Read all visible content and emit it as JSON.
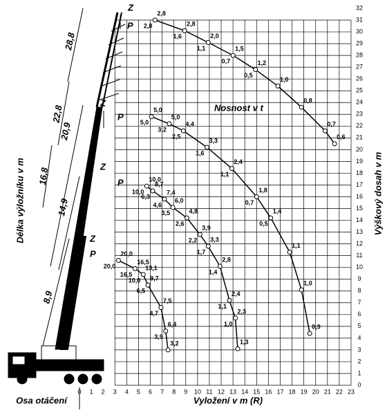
{
  "chart_data": {
    "type": "line",
    "title": "Nosnost  v  t",
    "x_label": "Vyložení  v m  (R)",
    "y_label": "Výškový  dosah  v m",
    "left_label": "Délka výložníku  v m",
    "origin_label": "Osa otáčení",
    "xlim": [
      0,
      23
    ],
    "ylim": [
      0,
      32
    ],
    "xticks": [
      0,
      1,
      2,
      3,
      4,
      5,
      6,
      7,
      8,
      9,
      10,
      11,
      12,
      13,
      14,
      15,
      16,
      17,
      18,
      19,
      20,
      21,
      22,
      23
    ],
    "yticks": [
      0,
      1,
      2,
      3,
      4,
      5,
      6,
      7,
      8,
      9,
      10,
      11,
      12,
      13,
      14,
      15,
      16,
      17,
      18,
      19,
      20,
      21,
      22,
      23,
      24,
      25,
      26,
      27,
      28,
      29,
      30,
      31,
      32
    ],
    "grid": true,
    "color": "#000000",
    "boom_lengths": [
      "28,8",
      "22,8",
      "20,9",
      "16,8",
      "14,9",
      "8,9"
    ],
    "series": [
      {
        "tags": [
          "Z",
          "P"
        ],
        "x": [
          6.4,
          8.9,
          10.9,
          13.0,
          14.9,
          16.8,
          18.8,
          20.8,
          21.6
        ],
        "values": [
          31.0,
          30.1,
          29.1,
          28.0,
          26.8,
          25.4,
          23.6,
          21.6,
          20.5
        ],
        "upper_labels": [
          "2,8",
          "2,8",
          "2,0",
          "1,5",
          "1,2",
          "1,0",
          "0,8",
          "0,7",
          "0,6"
        ],
        "lower_labels": [
          "2,8",
          "1,6",
          "1,1",
          "0,7",
          "0,5",
          null,
          null,
          null,
          null
        ]
      },
      {
        "tags": [
          "Z",
          "P"
        ],
        "x": [
          6.1,
          7.6,
          8.8,
          10.8,
          12.9,
          15.0,
          16.2,
          17.8,
          18.8,
          19.5
        ],
        "values": [
          22.8,
          22.2,
          21.6,
          20.2,
          18.4,
          16.0,
          14.2,
          11.3,
          8.1,
          4.4
        ],
        "upper_labels": [
          "5,0",
          "5,0",
          "4,4",
          "3,3",
          "2,4",
          "1,8",
          "1,4",
          "1,1",
          "1,0",
          "0,9"
        ],
        "lower_labels": [
          "5,0",
          "3,2",
          "2,5",
          "1,6",
          "1,1",
          "0,7",
          "0,5",
          null,
          null,
          null
        ]
      },
      {
        "tags": [
          "Z",
          "P"
        ],
        "x": [
          5.7,
          6.2,
          7.2,
          7.9,
          9.1,
          10.2,
          10.9,
          11.9,
          12.7,
          13.2,
          13.4
        ],
        "values": [
          16.9,
          16.5,
          15.8,
          15.1,
          14.2,
          12.8,
          11.8,
          10.1,
          7.2,
          5.7,
          3.1
        ],
        "upper_labels": [
          "10,0",
          "8,7",
          "7,4",
          "6,0",
          "4,8",
          "3,9",
          "3,3",
          "2,8",
          "2,4",
          "2,3",
          "1,3"
        ],
        "lower_labels": [
          "10,0",
          "6,3",
          "4,6",
          "3,5",
          "2,6",
          "2,2",
          "1,7",
          "1,4",
          "1,1",
          "1,0",
          null
        ]
      },
      {
        "tags": [
          "Z",
          "P"
        ],
        "x": [
          3.3,
          4.7,
          5.4,
          5.8,
          6.9,
          7.3,
          7.5
        ],
        "values": [
          10.6,
          9.9,
          9.4,
          8.5,
          6.6,
          4.6,
          3.0
        ],
        "upper_labels": [
          "20,0",
          "16,5",
          "13,1",
          "9,7",
          "7,5",
          "6,4",
          "3,2"
        ],
        "lower_labels": [
          "20,0",
          "16,5",
          "10,0",
          "6,5",
          "4,7",
          "3,9",
          null
        ]
      }
    ]
  }
}
